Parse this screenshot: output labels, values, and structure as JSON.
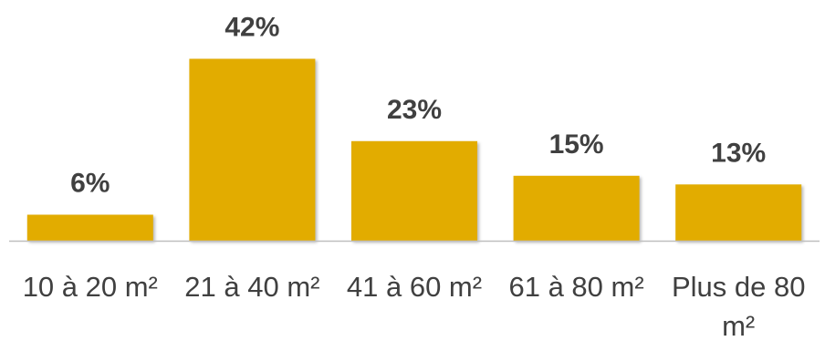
{
  "chart_data": {
    "type": "bar",
    "categories": [
      "10 à 20 m²",
      "21 à 40 m²",
      "41 à 60 m²",
      "61 à 80 m²",
      "Plus de 80 m²"
    ],
    "category_lines": [
      [
        "10 à 20 m²"
      ],
      [
        "21 à 40 m²"
      ],
      [
        "41 à 60 m²"
      ],
      [
        "61 à 80 m²"
      ],
      [
        "Plus de 80",
        "m²"
      ]
    ],
    "values": [
      6,
      42,
      23,
      15,
      13
    ],
    "data_labels": [
      "6%",
      "42%",
      "23%",
      "15%",
      "13%"
    ],
    "ylim": [
      0,
      45
    ],
    "grid": false,
    "legend": "none",
    "colors": {
      "bar": "#E2AC00",
      "axis": "#BFBFBF",
      "text": "#404040"
    }
  }
}
